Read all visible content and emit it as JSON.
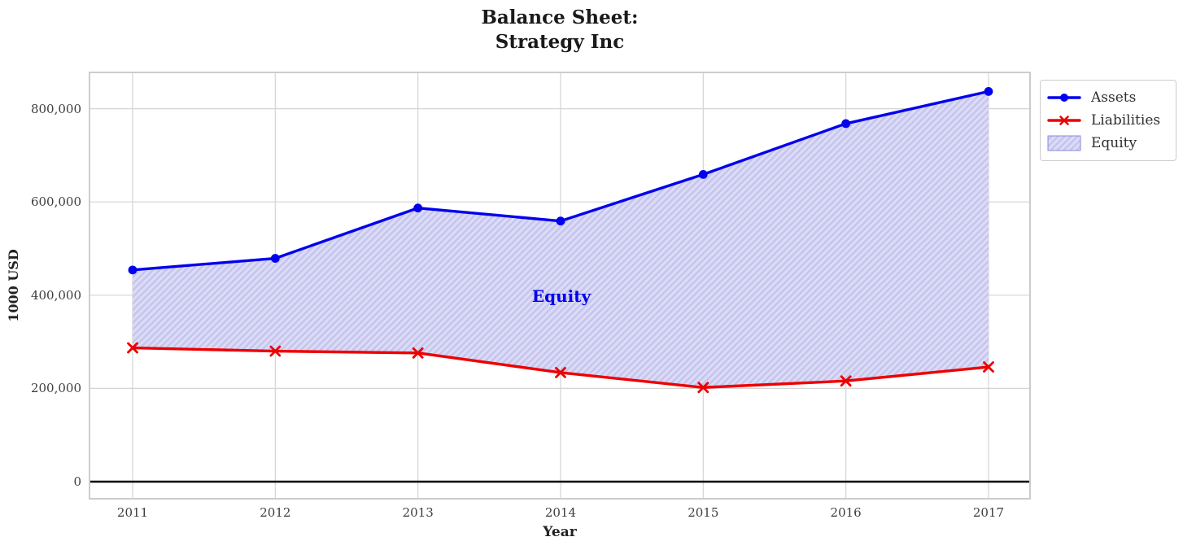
{
  "chart_data": {
    "type": "line",
    "title_lines": [
      "Balance Sheet:",
      "Strategy Inc"
    ],
    "title": "Balance Sheet:\nStrategy Inc",
    "xlabel": "Year",
    "ylabel": "1000 USD",
    "x": [
      2011,
      2012,
      2013,
      2014,
      2015,
      2016,
      2017
    ],
    "x_tick_labels": [
      "2011",
      "2012",
      "2013",
      "2014",
      "2015",
      "2016",
      "2017"
    ],
    "series": [
      {
        "name": "Assets",
        "color": "#0000ee",
        "marker": "circle",
        "values": [
          454000,
          479000,
          587000,
          559000,
          659000,
          768000,
          837000
        ]
      },
      {
        "name": "Liabilities",
        "color": "#ee0000",
        "marker": "x",
        "values": [
          287000,
          280000,
          276000,
          234000,
          202000,
          216000,
          246000
        ]
      }
    ],
    "area": {
      "name": "Equity",
      "between": [
        "Assets",
        "Liabilities"
      ],
      "face_color": "#dcdcf6",
      "hatch_color": "#c6c5ee",
      "hatch": "//",
      "edge_color": "#8888dd"
    },
    "annotation": {
      "text": "Equity",
      "x": 2014,
      "y": 400000,
      "color": "#0000ee"
    },
    "y_ticks": {
      "values": [
        0,
        200000,
        400000,
        600000,
        800000
      ],
      "labels": [
        "0",
        "200,000",
        "400,000",
        "600,000",
        "800,000"
      ]
    },
    "ylim": [
      -37000,
      877000
    ],
    "xlim": [
      2010.7,
      2017.3
    ],
    "grid": true,
    "grid_color": "#d4d4d4",
    "frame_color": "#cccccc",
    "zero_line_color": "#000000",
    "legend_position": "upper right, outside axes",
    "legend_entries": [
      "Assets",
      "Liabilities",
      "Equity"
    ]
  }
}
